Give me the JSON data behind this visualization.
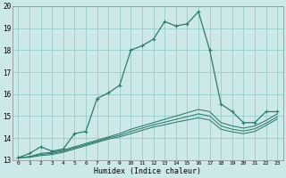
{
  "xlabel": "Humidex (Indice chaleur)",
  "ylabel": "",
  "xlim": [
    -0.5,
    23.5
  ],
  "ylim": [
    13,
    20
  ],
  "yticks": [
    13,
    14,
    15,
    16,
    17,
    18,
    19,
    20
  ],
  "xticks": [
    0,
    1,
    2,
    3,
    4,
    5,
    6,
    7,
    8,
    9,
    10,
    11,
    12,
    13,
    14,
    15,
    16,
    17,
    18,
    19,
    20,
    21,
    22,
    23
  ],
  "bg_color": "#cce8e8",
  "grid_color": "#99cccc",
  "line_color": "#2d7a6e",
  "lines": [
    {
      "x": [
        0,
        1,
        2,
        3,
        4,
        5,
        6,
        7,
        8,
        9,
        10,
        11,
        12,
        13,
        14,
        15,
        16,
        17,
        18,
        19,
        20,
        21,
        22,
        23
      ],
      "y": [
        13.1,
        13.3,
        13.6,
        13.4,
        13.5,
        14.2,
        14.3,
        15.8,
        16.05,
        16.4,
        18.0,
        18.2,
        18.5,
        19.3,
        19.1,
        19.2,
        19.75,
        18.0,
        15.55,
        15.2,
        14.7,
        14.7,
        15.2,
        15.2
      ],
      "has_markers": true
    },
    {
      "x": [
        0,
        1,
        2,
        3,
        4,
        5,
        6,
        7,
        8,
        9,
        10,
        11,
        12,
        13,
        14,
        15,
        16,
        17,
        18,
        19,
        20,
        21,
        22,
        23
      ],
      "y": [
        13.1,
        13.15,
        13.3,
        13.35,
        13.45,
        13.6,
        13.75,
        13.9,
        14.05,
        14.2,
        14.4,
        14.55,
        14.7,
        14.85,
        15.0,
        15.15,
        15.3,
        15.2,
        14.7,
        14.55,
        14.45,
        14.55,
        14.8,
        15.1
      ],
      "has_markers": false
    },
    {
      "x": [
        0,
        1,
        2,
        3,
        4,
        5,
        6,
        7,
        8,
        9,
        10,
        11,
        12,
        13,
        14,
        15,
        16,
        17,
        18,
        19,
        20,
        21,
        22,
        23
      ],
      "y": [
        13.1,
        13.15,
        13.25,
        13.3,
        13.4,
        13.55,
        13.7,
        13.85,
        14.0,
        14.12,
        14.3,
        14.45,
        14.6,
        14.72,
        14.85,
        14.97,
        15.1,
        15.0,
        14.55,
        14.4,
        14.32,
        14.42,
        14.67,
        14.97
      ],
      "has_markers": false
    },
    {
      "x": [
        0,
        1,
        2,
        3,
        4,
        5,
        6,
        7,
        8,
        9,
        10,
        11,
        12,
        13,
        14,
        15,
        16,
        17,
        18,
        19,
        20,
        21,
        22,
        23
      ],
      "y": [
        13.1,
        13.12,
        13.2,
        13.25,
        13.35,
        13.5,
        13.65,
        13.8,
        13.95,
        14.05,
        14.2,
        14.35,
        14.5,
        14.6,
        14.72,
        14.82,
        14.92,
        14.82,
        14.4,
        14.28,
        14.2,
        14.3,
        14.57,
        14.87
      ],
      "has_markers": false
    }
  ]
}
